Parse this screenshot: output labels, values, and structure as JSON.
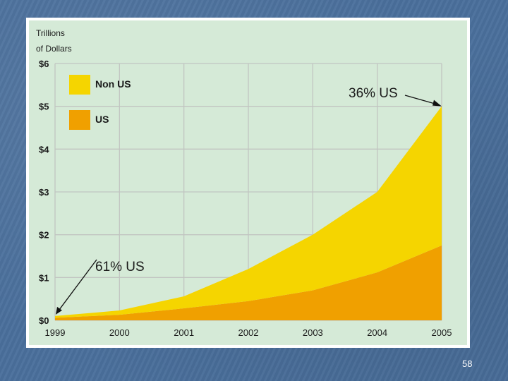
{
  "slide": {
    "page_number": "58"
  },
  "chart_data": {
    "type": "area",
    "stacked": true,
    "ylabel_lines": [
      "Trillions",
      "of Dollars"
    ],
    "x": [
      "1999",
      "2000",
      "2001",
      "2002",
      "2003",
      "2004",
      "2005"
    ],
    "y_ticks": [
      "$0",
      "$1",
      "$2",
      "$3",
      "$4",
      "$5",
      "$6"
    ],
    "ylim": [
      0,
      6
    ],
    "grid": true,
    "legend_position": "top-left",
    "series": [
      {
        "name": "US",
        "color": "#f0a000",
        "values": [
          0.06,
          0.13,
          0.28,
          0.45,
          0.7,
          1.12,
          1.75
        ]
      },
      {
        "name": "Non US",
        "color": "#f5d500",
        "values": [
          0.04,
          0.1,
          0.28,
          0.75,
          1.3,
          1.88,
          3.25
        ]
      }
    ],
    "totals": [
      0.1,
      0.23,
      0.56,
      1.2,
      2.0,
      3.0,
      5.0
    ],
    "annotations": [
      {
        "text": "61% US",
        "x": "1999",
        "y": 0.1
      },
      {
        "text": "36% US",
        "x": "2005",
        "y": 5.0
      }
    ],
    "colors": {
      "plot_bg": "#d5ead7",
      "grid": "#c1c5c1",
      "axis_text": "#1a1a1a"
    }
  }
}
